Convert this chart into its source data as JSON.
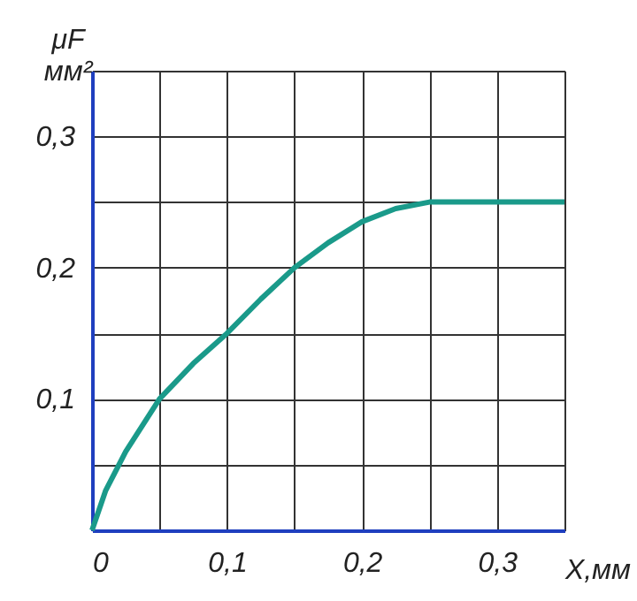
{
  "chart_data": {
    "type": "line",
    "xlabel": "X,мм",
    "ylabel": "μF мм²",
    "x": [
      0,
      0.01,
      0.025,
      0.05,
      0.075,
      0.1,
      0.125,
      0.15,
      0.175,
      0.2,
      0.225,
      0.25,
      0.26,
      0.3,
      0.35
    ],
    "series": [
      {
        "color": "#1a9a8a",
        "values": [
          0,
          0.03,
          0.06,
          0.1,
          0.127,
          0.15,
          0.176,
          0.2,
          0.219,
          0.235,
          0.245,
          0.25,
          0.25,
          0.25,
          0.25
        ]
      }
    ],
    "xlim": [
      0,
      0.35
    ],
    "ylim": [
      0,
      0.35
    ],
    "xticks": [
      {
        "value": 0,
        "label": "0"
      },
      {
        "value": 0.05,
        "label": null
      },
      {
        "value": 0.1,
        "label": "0,1"
      },
      {
        "value": 0.15,
        "label": null
      },
      {
        "value": 0.2,
        "label": "0,2"
      },
      {
        "value": 0.25,
        "label": null
      },
      {
        "value": 0.3,
        "label": "0,3"
      },
      {
        "value": 0.35,
        "label": null
      }
    ],
    "yticks": [
      {
        "value": 0,
        "label": null
      },
      {
        "value": 0.05,
        "label": null
      },
      {
        "value": 0.1,
        "label": "0,1"
      },
      {
        "value": 0.15,
        "label": null
      },
      {
        "value": 0.2,
        "label": "0,2"
      },
      {
        "value": 0.25,
        "label": null
      },
      {
        "value": 0.3,
        "label": "0,3"
      },
      {
        "value": 0.35,
        "label": null
      }
    ],
    "grid": true,
    "marker": "none",
    "line_style": "solid"
  }
}
